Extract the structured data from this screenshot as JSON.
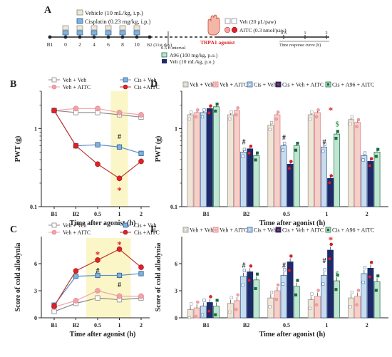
{
  "colors": {
    "veh_veh": "#ffffff",
    "veh_veh_edge": "#8a8a8a",
    "veh_aitc": "#f2a3a8",
    "cis_veh": "#7fb3dc",
    "cis_veh_edge": "#2f5f9a",
    "cis_aitc": "#e02226",
    "bar_veh_veh": "#f1e6d6",
    "bar_veh_aitc": "#f4d0c8",
    "bar_cis_veh": "#c7dcee",
    "bar_cis_veh_aitc": "#1e2a6a",
    "bar_cis_a96_aitc": "#bfe6d2",
    "bar_cis_a96_edge": "#1a6b3a",
    "green_mark": "#2f9a4e",
    "highlight": "#fbf6c8"
  },
  "timeline": {
    "letter": "A",
    "treatment_vehicle": "Vehicle (10 mL/kg, i.p.)",
    "treatment_cisplatin": "Cisplatin (0.23 mg/kg, i.p.)",
    "day_labels": [
      "B1",
      "0",
      "2",
      "4",
      "6",
      "8",
      "10",
      "B2 (11st day)"
    ],
    "interval_label": "0.5 h interval",
    "a96_label": "A96 (100 mg/kg, p.o.)",
    "veh_po_label": "Veh (10 mL/kg, p.o.)",
    "agonist_label": "TRPA1 agonist",
    "veh_paw_label": "Veh (20 μL/paw)",
    "aitc_paw_label": "AITC (0.3 nmol/paw)",
    "time_ticks": [
      "0.5",
      "1",
      "2"
    ],
    "time_curve_label": "Time response curve (h)"
  },
  "chart_data": [
    {
      "panel": "B",
      "type": "line",
      "ylabel": "PWT (g)",
      "xlabel": "Time after agonist (h)",
      "yscale": "log",
      "ylim": [
        0.1,
        3
      ],
      "yticks": [
        "0.1",
        "1"
      ],
      "categories": [
        "B1",
        "B2",
        "0.5",
        "1",
        "2"
      ],
      "highlight_category": "1",
      "series": [
        {
          "name": "Veh + Veh",
          "values": [
            1.7,
            1.6,
            1.6,
            1.5,
            1.4
          ]
        },
        {
          "name": "Veh + AITC",
          "values": [
            1.7,
            1.8,
            1.8,
            1.6,
            1.5
          ]
        },
        {
          "name": "Cis + Veh",
          "values": [
            1.7,
            0.6,
            0.62,
            0.58,
            0.48
          ]
        },
        {
          "name": "Cis +AITC",
          "values": [
            1.7,
            0.6,
            0.35,
            0.23,
            0.38
          ]
        }
      ],
      "annotations": [
        {
          "text": "#",
          "category": "1",
          "value": 0.8
        },
        {
          "text": "*",
          "category": "1",
          "value": 0.16
        }
      ]
    },
    {
      "panel": "C",
      "type": "line",
      "ylabel": "Score of cold allodynia",
      "xlabel": "Time after agonist (h)",
      "ylim": [
        0,
        9
      ],
      "yticks": [
        "0",
        "3",
        "6"
      ],
      "categories": [
        "B1",
        "B2",
        "0.5",
        "1",
        "2"
      ],
      "highlight_range": [
        "0.5",
        "1"
      ],
      "series": [
        {
          "name": "Veh + Veh",
          "values": [
            0.7,
            1.6,
            2.2,
            2.0,
            2.2
          ]
        },
        {
          "name": "Veh + AITC",
          "values": [
            1.2,
            1.9,
            3.0,
            2.4,
            2.4
          ]
        },
        {
          "name": "Cis + Veh",
          "values": [
            1.4,
            4.6,
            4.7,
            4.7,
            4.9
          ]
        },
        {
          "name": "Cis +AITC",
          "values": [
            1.3,
            5.2,
            6.4,
            7.6,
            5.6
          ]
        }
      ],
      "annotations": [
        {
          "text": "*",
          "category": "0.5",
          "value": 7.0
        },
        {
          "text": "*",
          "category": "1",
          "value": 8.1
        },
        {
          "text": "#",
          "category": "0.5",
          "value": 5.3
        },
        {
          "text": "#",
          "category": "1",
          "value": 3.7
        }
      ]
    },
    {
      "panel": "D",
      "type": "bar",
      "ylabel": "PWT (g)",
      "xlabel": "Time after agonist (h)",
      "yscale": "log",
      "ylim": [
        0.1,
        3
      ],
      "yticks": [
        "0.1",
        "1"
      ],
      "categories": [
        "B1",
        "B2",
        "0.5",
        "1",
        "2"
      ],
      "series": [
        {
          "name": "Veh + Veh",
          "values": [
            1.5,
            1.5,
            1.1,
            1.5,
            1.3
          ]
        },
        {
          "name": "Veh + AITC",
          "values": [
            1.6,
            1.7,
            1.5,
            1.6,
            1.2
          ]
        },
        {
          "name": "Cis + Veh",
          "values": [
            1.6,
            0.5,
            0.6,
            0.58,
            0.45
          ]
        },
        {
          "name": "Cis + Veh + AITC",
          "values": [
            1.8,
            0.55,
            0.35,
            0.23,
            0.38
          ]
        },
        {
          "name": "Cis + A96 + AITC",
          "values": [
            1.9,
            0.45,
            0.6,
            0.85,
            0.5
          ]
        }
      ],
      "annotations": [
        {
          "text": "#",
          "category": "B2",
          "value": 0.68
        },
        {
          "text": "#",
          "category": "0.5",
          "value": 0.78
        },
        {
          "text": "#",
          "category": "1",
          "value": 0.68
        },
        {
          "text": "*",
          "category": "1",
          "value": 1.7
        },
        {
          "text": "$",
          "category": "1",
          "value": 1.15
        }
      ]
    },
    {
      "panel": "E",
      "type": "bar",
      "ylabel": "Score of cold allodynia",
      "xlabel": "Time after agonist (h)",
      "ylim": [
        0,
        9
      ],
      "yticks": [
        "0",
        "3",
        "6"
      ],
      "categories": [
        "B1",
        "B2",
        "0.5",
        "1",
        "2"
      ],
      "series": [
        {
          "name": "Veh + Veh",
          "values": [
            0.9,
            1.6,
            2.2,
            2.0,
            2.2
          ]
        },
        {
          "name": "Veh + AITC",
          "values": [
            1.1,
            1.9,
            3.0,
            2.4,
            2.4
          ]
        },
        {
          "name": "Cis + Veh",
          "values": [
            1.3,
            4.6,
            4.7,
            4.7,
            4.9
          ]
        },
        {
          "name": "Cis + Veh + AITC",
          "values": [
            1.7,
            5.1,
            6.2,
            7.5,
            5.5
          ]
        },
        {
          "name": "Cis + A96 + AITC",
          "values": [
            1.3,
            4.2,
            3.5,
            4.1,
            4.0
          ]
        }
      ],
      "annotations": [
        {
          "text": "#",
          "category": "B2",
          "value": 5.9
        },
        {
          "text": "#",
          "category": "0.5",
          "value": 5.9
        },
        {
          "text": "#",
          "category": "1",
          "value": 6.4
        },
        {
          "text": "*",
          "category": "1",
          "value": 8.6
        },
        {
          "text": "$",
          "category": "1",
          "value": 4.9
        }
      ]
    }
  ]
}
